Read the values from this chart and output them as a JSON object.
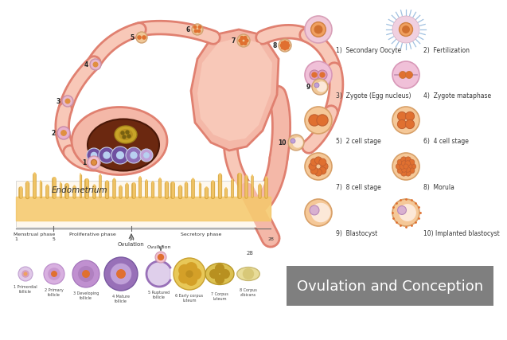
{
  "title": "Ovulation and Conception",
  "title_bg": "#7f7f7f",
  "title_text_color": "#ffffff",
  "bg_color": "#ffffff",
  "skin_color": "#f0a898",
  "skin_dark": "#e08070",
  "skin_light": "#f8c8b8",
  "skin_mid": "#f4b8a8",
  "endo_fill": "#f5c86a",
  "endo_dark": "#d4a030",
  "brown_ovary": "#6B2810",
  "purple_dark": "#7050a0",
  "purple_mid": "#9070b8",
  "purple_light": "#c0a0d8",
  "orange_cell": "#e07030",
  "orange_light": "#f0a060",
  "phase_labels": [
    "Menstrual phase",
    "Proliferative phase",
    "Secretory phase"
  ],
  "bottom_labels": [
    "1 Primordial\nfollicle",
    "2 Primary\nfollicle",
    "3 Developing\nfollicle",
    "4 Mature\nfollicle",
    "5 Ruptured\nfollicle",
    "6 Early corpus\nluteum",
    "7 Corpus\nluteum",
    "8 Corpus\nalbicans"
  ],
  "stage_labels": [
    "1)  Secondary Oocyte",
    "2)  Fertilization",
    "3)  Zygote (Egg nucleus)",
    "4)  Zygote mataphase",
    "5)  2 cell stage",
    "6)  4 cell stage",
    "7)  8 cell stage",
    "8)  Morula",
    "9)  Blastocyst",
    "10) Implanted blastocyst"
  ],
  "endometrium_label": "Endometrium"
}
